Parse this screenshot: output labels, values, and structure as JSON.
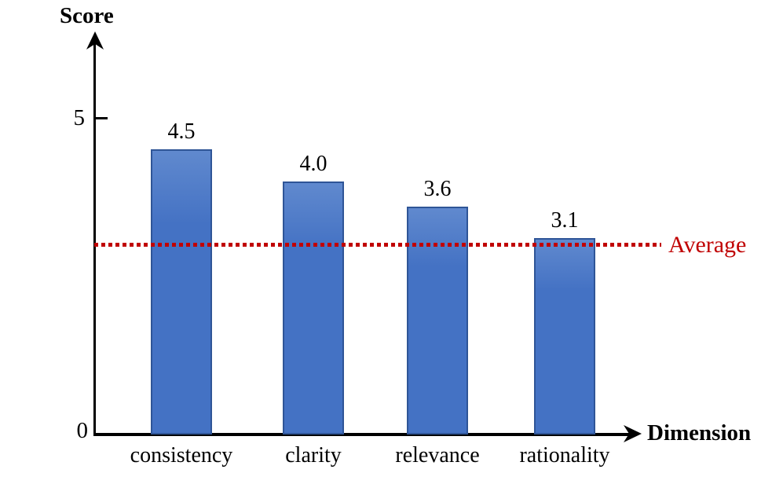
{
  "chart_data": {
    "type": "bar",
    "title": "",
    "categories": [
      "consistency",
      "clarity",
      "relevance",
      "rationality"
    ],
    "values": [
      4.5,
      4.0,
      3.6,
      3.1
    ],
    "value_labels": [
      "4.5",
      "4.0",
      "3.6",
      "3.1"
    ],
    "xlabel": "Dimension",
    "ylabel": "Score",
    "ylim": [
      0,
      5
    ],
    "yticks": [
      0,
      5
    ],
    "ytick_labels": [
      "0",
      "5"
    ],
    "grid": false,
    "legend": "none",
    "average_line": {
      "value": 3.0,
      "label": "Average",
      "style": "dotted"
    },
    "colors": {
      "bar_fill": "#4472C4",
      "bar_fill_light": "#6089CE",
      "bar_border": "#2F5597",
      "average_line": "#C00000",
      "axis": "#000000"
    }
  }
}
